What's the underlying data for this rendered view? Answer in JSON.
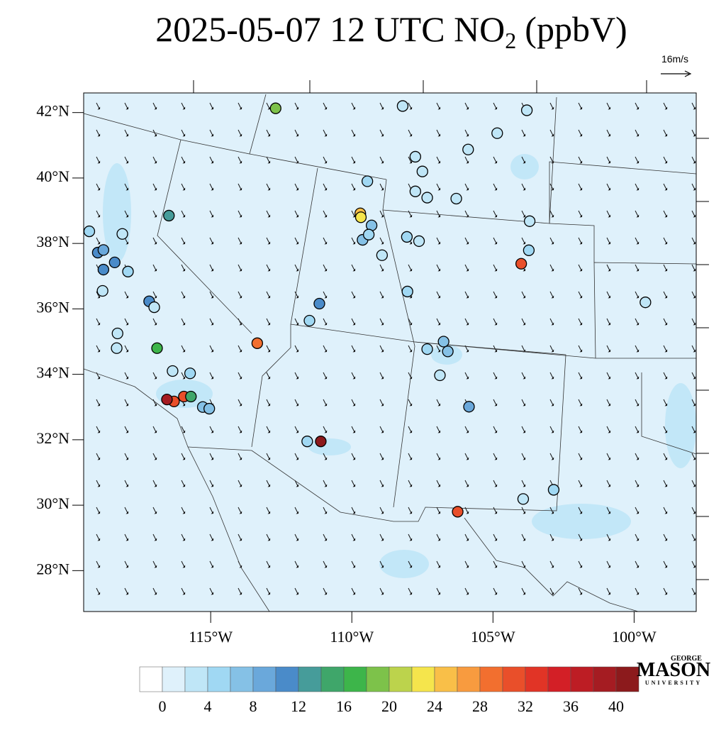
{
  "title": {
    "prefix": "2025-05-07 12 UTC NO",
    "subscript": "2",
    "suffix": "(ppbV)"
  },
  "wind_scale": "16m/s",
  "logo": {
    "top": "GEORGE",
    "main": "MASON",
    "bottom": "UNIVERSITY"
  },
  "map": {
    "lonlim": [
      -119.5,
      -97.8
    ],
    "latlim": [
      26.75,
      42.6
    ],
    "xticks": [
      {
        "value": -115,
        "label": "115°W"
      },
      {
        "value": -110,
        "label": "110°W"
      },
      {
        "value": -105,
        "label": "105°W"
      },
      {
        "value": -100,
        "label": "100°W"
      }
    ],
    "yticks": [
      {
        "value": 42,
        "label": "42°N"
      },
      {
        "value": 40,
        "label": "40°N"
      },
      {
        "value": 38,
        "label": "38°N"
      },
      {
        "value": 36,
        "label": "36°N"
      },
      {
        "value": 34,
        "label": "34°N"
      },
      {
        "value": 32,
        "label": "32°N"
      },
      {
        "value": 30,
        "label": "30°N"
      },
      {
        "value": 28,
        "label": "28°N"
      }
    ],
    "stations": [
      {
        "lon": -116.48,
        "lat": 38.85,
        "value": 12
      },
      {
        "lon": -112.7,
        "lat": 42.13,
        "value": 18
      },
      {
        "lon": -109.7,
        "lat": 38.92,
        "value": 24
      },
      {
        "lon": -109.68,
        "lat": 38.8,
        "value": 22
      },
      {
        "lon": -113.35,
        "lat": 34.95,
        "value": 29
      },
      {
        "lon": -111.1,
        "lat": 31.95,
        "value": 40
      },
      {
        "lon": -116.3,
        "lat": 33.17,
        "value": 30
      },
      {
        "lon": -115.95,
        "lat": 33.32,
        "value": 31
      },
      {
        "lon": -115.7,
        "lat": 33.32,
        "value": 14
      },
      {
        "lon": -116.55,
        "lat": 33.23,
        "value": 38
      },
      {
        "lon": -116.9,
        "lat": 34.8,
        "value": 16
      },
      {
        "lon": -117.18,
        "lat": 36.23,
        "value": 11
      },
      {
        "lon": -104.0,
        "lat": 37.38,
        "value": 31
      },
      {
        "lon": -106.25,
        "lat": 29.8,
        "value": 30
      },
      {
        "lon": -111.15,
        "lat": 36.16,
        "value": 11
      },
      {
        "lon": -119.0,
        "lat": 37.72,
        "value": 11
      },
      {
        "lon": -118.8,
        "lat": 37.2,
        "value": 10
      },
      {
        "lon": -118.4,
        "lat": 37.42,
        "value": 10
      },
      {
        "lon": -105.85,
        "lat": 33.01,
        "value": 9
      },
      {
        "lon": -106.75,
        "lat": 35.0,
        "value": 6
      },
      {
        "lon": -109.62,
        "lat": 38.11,
        "value": 7
      },
      {
        "lon": -109.3,
        "lat": 38.55,
        "value": 7
      },
      {
        "lon": -115.28,
        "lat": 33.0,
        "value": 7
      },
      {
        "lon": -118.8,
        "lat": 37.8,
        "value": 8
      },
      {
        "lon": -119.3,
        "lat": 38.37,
        "value": 4
      },
      {
        "lon": -108.2,
        "lat": 42.2,
        "value": 3
      },
      {
        "lon": -103.8,
        "lat": 42.07,
        "value": 3
      },
      {
        "lon": -104.85,
        "lat": 41.37,
        "value": 3
      },
      {
        "lon": -105.88,
        "lat": 40.87,
        "value": 3
      },
      {
        "lon": -107.75,
        "lat": 40.65,
        "value": 3
      },
      {
        "lon": -107.5,
        "lat": 40.2,
        "value": 3
      },
      {
        "lon": -107.75,
        "lat": 39.59,
        "value": 3
      },
      {
        "lon": -107.33,
        "lat": 39.4,
        "value": 3
      },
      {
        "lon": -106.3,
        "lat": 39.37,
        "value": 3
      },
      {
        "lon": -109.45,
        "lat": 39.9,
        "value": 5
      },
      {
        "lon": -109.4,
        "lat": 38.27,
        "value": 5
      },
      {
        "lon": -108.93,
        "lat": 37.64,
        "value": 3
      },
      {
        "lon": -108.05,
        "lat": 38.2,
        "value": 5
      },
      {
        "lon": -107.62,
        "lat": 38.07,
        "value": 3
      },
      {
        "lon": -108.03,
        "lat": 36.53,
        "value": 5
      },
      {
        "lon": -111.5,
        "lat": 35.64,
        "value": 5
      },
      {
        "lon": -99.6,
        "lat": 36.2,
        "value": 3
      },
      {
        "lon": -102.85,
        "lat": 30.47,
        "value": 4
      },
      {
        "lon": -103.93,
        "lat": 30.19,
        "value": 3
      },
      {
        "lon": -103.73,
        "lat": 37.79,
        "value": 5
      },
      {
        "lon": -103.7,
        "lat": 38.68,
        "value": 3
      },
      {
        "lon": -115.73,
        "lat": 34.03,
        "value": 5
      },
      {
        "lon": -115.05,
        "lat": 32.95,
        "value": 6
      },
      {
        "lon": -116.35,
        "lat": 34.1,
        "value": 3
      },
      {
        "lon": -118.3,
        "lat": 35.25,
        "value": 3
      },
      {
        "lon": -117.0,
        "lat": 36.05,
        "value": 3
      },
      {
        "lon": -106.88,
        "lat": 33.97,
        "value": 3
      },
      {
        "lon": -111.58,
        "lat": 31.95,
        "value": 5
      },
      {
        "lon": -107.33,
        "lat": 34.77,
        "value": 5
      },
      {
        "lon": -106.6,
        "lat": 34.7,
        "value": 6
      },
      {
        "lon": -118.33,
        "lat": 34.8,
        "value": 3
      },
      {
        "lon": -118.13,
        "lat": 38.29,
        "value": 3
      },
      {
        "lon": -117.93,
        "lat": 37.14,
        "value": 4
      },
      {
        "lon": -118.83,
        "lat": 36.55,
        "value": 3
      }
    ]
  },
  "colorbar": {
    "levels": [
      0,
      2,
      4,
      6,
      8,
      10,
      12,
      14,
      16,
      18,
      20,
      22,
      24,
      26,
      28,
      30,
      32,
      34,
      36,
      38,
      40
    ],
    "ticks": [
      0,
      4,
      8,
      12,
      16,
      20,
      24,
      28,
      32,
      36,
      40
    ],
    "colors": [
      "#ffffff",
      "#dff1fb",
      "#bfe6f7",
      "#a0d8f3",
      "#85c1e6",
      "#6aa8db",
      "#4a8bc9",
      "#469c9a",
      "#3fa66a",
      "#3db54a",
      "#7dc24a",
      "#bcd34c",
      "#f5e54c",
      "#f9bf48",
      "#f89b3f",
      "#f26f2f",
      "#e94f2a",
      "#e13426",
      "#d31f26",
      "#bd1d24",
      "#a51c22",
      "#8c1a1c"
    ]
  }
}
